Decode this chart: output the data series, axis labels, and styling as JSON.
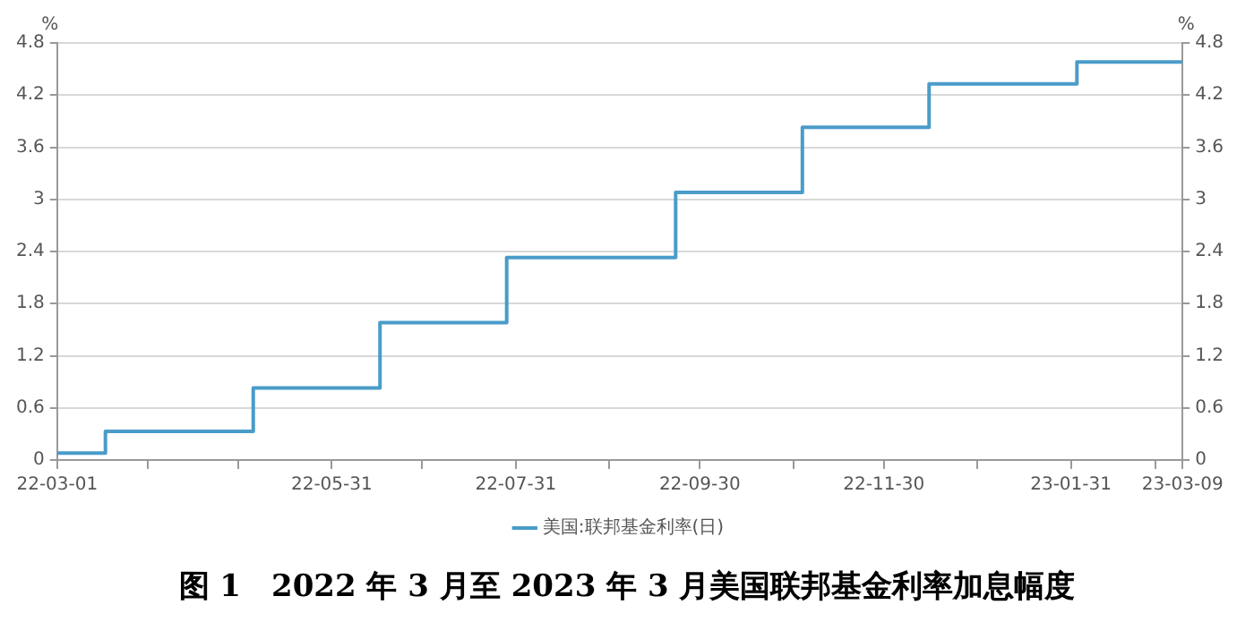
{
  "chart_data": {
    "type": "step",
    "title": "图 1　2022 年 3 月至 2023 年 3 月美国联邦基金利率加息幅度",
    "ylabel": "%",
    "y2label": "%",
    "x": [
      "2022-03-01",
      "2022-03-17",
      "2022-05-05",
      "2022-06-16",
      "2022-07-28",
      "2022-09-22",
      "2022-11-03",
      "2022-12-15",
      "2023-02-02",
      "2023-03-09"
    ],
    "series": [
      {
        "name": "美国:联邦基金利率(日)",
        "color": "#4a9cc9",
        "values": [
          0.08,
          0.33,
          0.83,
          1.58,
          2.33,
          3.08,
          3.83,
          4.33,
          4.58,
          4.58
        ]
      }
    ],
    "xlim": [
      "2022-03-01",
      "2023-03-09"
    ],
    "xticks": [
      {
        "value": "2022-03-01",
        "label": "22-03-01"
      },
      {
        "value": "2022-03-31",
        "label": null
      },
      {
        "value": "2022-04-30",
        "label": null
      },
      {
        "value": "2022-05-31",
        "label": "22-05-31"
      },
      {
        "value": "2022-06-30",
        "label": null
      },
      {
        "value": "2022-07-31",
        "label": "22-07-31"
      },
      {
        "value": "2022-08-31",
        "label": null
      },
      {
        "value": "2022-09-30",
        "label": "22-09-30"
      },
      {
        "value": "2022-10-31",
        "label": null
      },
      {
        "value": "2022-11-30",
        "label": "22-11-30"
      },
      {
        "value": "2022-12-31",
        "label": null
      },
      {
        "value": "2023-01-31",
        "label": "23-01-31"
      },
      {
        "value": "2023-02-28",
        "label": null
      },
      {
        "value": "2023-03-09",
        "label": "23-03-09"
      }
    ],
    "ylim": [
      0,
      4.8
    ],
    "yticks": [
      0,
      0.6,
      1.2,
      1.8,
      2.4,
      3,
      3.6,
      4.2,
      4.8
    ],
    "y2lim": [
      0,
      4.8
    ],
    "y2ticks": [
      0,
      0.6,
      1.2,
      1.8,
      2.4,
      3,
      3.6,
      4.2,
      4.8
    ],
    "grid": "y",
    "legend": "bottom"
  }
}
